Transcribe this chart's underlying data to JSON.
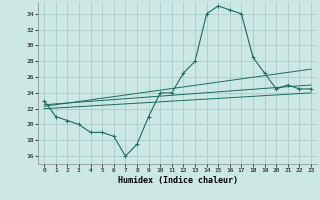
{
  "title": "",
  "xlabel": "Humidex (Indice chaleur)",
  "bg_color": "#cce8e4",
  "grid_color": "#aaccca",
  "line_color": "#1a6b60",
  "xlim": [
    -0.5,
    23.5
  ],
  "ylim": [
    15.0,
    35.5
  ],
  "yticks": [
    16,
    18,
    20,
    22,
    24,
    26,
    28,
    30,
    32,
    34
  ],
  "xticks": [
    0,
    1,
    2,
    3,
    4,
    5,
    6,
    7,
    8,
    9,
    10,
    11,
    12,
    13,
    14,
    15,
    16,
    17,
    18,
    19,
    20,
    21,
    22,
    23
  ],
  "series1": [
    23,
    21,
    20.5,
    20,
    19,
    19,
    18.5,
    16,
    17.5,
    21,
    24,
    24,
    26.5,
    28,
    34,
    35,
    34.5,
    34,
    28.5,
    26.5,
    24.5,
    25,
    24.5,
    24.5
  ],
  "series2_x": [
    0,
    23
  ],
  "series2_y": [
    22.5,
    25.0
  ],
  "series3_x": [
    0,
    23
  ],
  "series3_y": [
    22.3,
    27.0
  ],
  "series4_x": [
    0,
    23
  ],
  "series4_y": [
    22.0,
    24.0
  ]
}
